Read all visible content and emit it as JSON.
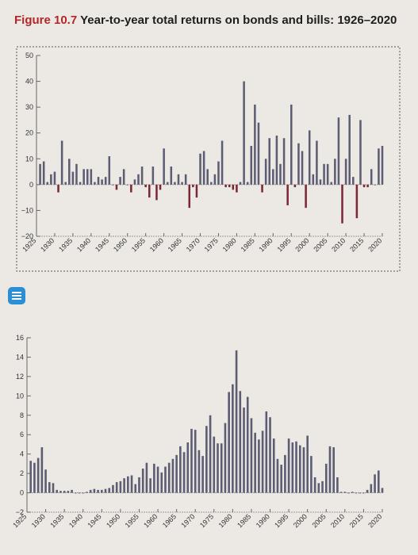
{
  "figure": {
    "number": "Figure 10.7",
    "title": "Year-to-year total returns on bonds and bills: 1926–2020"
  },
  "icons": {
    "document": "document-icon"
  },
  "chart_data": [
    {
      "type": "bar",
      "title": "",
      "xlabel": "",
      "ylabel": "",
      "grid": false,
      "ylim": [
        -20,
        50
      ],
      "yticks": [
        "50",
        "40",
        "30",
        "20",
        "10",
        "0",
        "-10",
        "-20"
      ],
      "xticks": [
        "1925",
        "1930",
        "1935",
        "1940",
        "1945",
        "1950",
        "1955",
        "1960",
        "1965",
        "1970",
        "1975",
        "1980",
        "1985",
        "1990",
        "1995",
        "2000",
        "2005",
        "2010",
        "2015",
        "2020"
      ],
      "colors": [
        "#5c5c72",
        "#7a2836"
      ],
      "x": [
        1926,
        1927,
        1928,
        1929,
        1930,
        1931,
        1932,
        1933,
        1934,
        1935,
        1936,
        1937,
        1938,
        1939,
        1940,
        1941,
        1942,
        1943,
        1944,
        1945,
        1946,
        1947,
        1948,
        1949,
        1950,
        1951,
        1952,
        1953,
        1954,
        1955,
        1956,
        1957,
        1958,
        1959,
        1960,
        1961,
        1962,
        1963,
        1964,
        1965,
        1966,
        1967,
        1968,
        1969,
        1970,
        1971,
        1972,
        1973,
        1974,
        1975,
        1976,
        1977,
        1978,
        1979,
        1980,
        1981,
        1982,
        1983,
        1984,
        1985,
        1986,
        1987,
        1988,
        1989,
        1990,
        1991,
        1992,
        1993,
        1994,
        1995,
        1996,
        1997,
        1998,
        1999,
        2000,
        2001,
        2002,
        2003,
        2004,
        2005,
        2006,
        2007,
        2008,
        2009,
        2010,
        2011,
        2012,
        2013,
        2014,
        2015,
        2016,
        2017,
        2018,
        2019,
        2020
      ],
      "values": [
        8,
        9,
        1,
        4,
        5,
        -3,
        17,
        1,
        10,
        5,
        8,
        1,
        6,
        6,
        6,
        1,
        3,
        2,
        3,
        11,
        0,
        -2,
        3,
        6,
        0,
        -3,
        2,
        4,
        7,
        -1,
        -5,
        7,
        -6,
        -2,
        14,
        1,
        7,
        1,
        4,
        1,
        4,
        -9,
        -1,
        -5,
        12,
        13,
        6,
        1,
        4,
        9,
        17,
        -1,
        -1,
        -2,
        -3,
        1,
        40,
        1,
        15,
        31,
        24,
        -3,
        10,
        18,
        6,
        19,
        8,
        18,
        -8,
        31,
        -1,
        16,
        13,
        -9,
        21,
        4,
        17,
        2,
        8,
        8,
        1,
        10,
        26,
        -15,
        10,
        27,
        3,
        -13,
        25,
        -1,
        -1,
        6,
        0,
        14,
        15
      ]
    },
    {
      "type": "bar",
      "title": "",
      "xlabel": "",
      "ylabel": "",
      "grid": false,
      "ylim": [
        -2,
        16
      ],
      "yticks": [
        "16",
        "14",
        "12",
        "10",
        "8",
        "6",
        "4",
        "2",
        "0",
        "-2"
      ],
      "xticks": [
        "1925",
        "1930",
        "1935",
        "1940",
        "1945",
        "1950",
        "1955",
        "1960",
        "1965",
        "1970",
        "1975",
        "1980",
        "1985",
        "1990",
        "1995",
        "2000",
        "2005",
        "2010",
        "2015",
        "2020"
      ],
      "colors": [
        "#5c5c72"
      ],
      "x": [
        1926,
        1927,
        1928,
        1929,
        1930,
        1931,
        1932,
        1933,
        1934,
        1935,
        1936,
        1937,
        1938,
        1939,
        1940,
        1941,
        1942,
        1943,
        1944,
        1945,
        1946,
        1947,
        1948,
        1949,
        1950,
        1951,
        1952,
        1953,
        1954,
        1955,
        1956,
        1957,
        1958,
        1959,
        1960,
        1961,
        1962,
        1963,
        1964,
        1965,
        1966,
        1967,
        1968,
        1969,
        1970,
        1971,
        1972,
        1973,
        1974,
        1975,
        1976,
        1977,
        1978,
        1979,
        1980,
        1981,
        1982,
        1983,
        1984,
        1985,
        1986,
        1987,
        1988,
        1989,
        1990,
        1991,
        1992,
        1993,
        1994,
        1995,
        1996,
        1997,
        1998,
        1999,
        2000,
        2001,
        2002,
        2003,
        2004,
        2005,
        2006,
        2007,
        2008,
        2009,
        2010,
        2011,
        2012,
        2013,
        2014,
        2015,
        2016,
        2017,
        2018,
        2019,
        2020
      ],
      "values": [
        3.3,
        3.1,
        3.6,
        4.7,
        2.4,
        1.1,
        1.0,
        0.3,
        0.2,
        0.2,
        0.2,
        0.3,
        0.0,
        0.0,
        0.0,
        0.1,
        0.3,
        0.4,
        0.3,
        0.3,
        0.4,
        0.5,
        0.8,
        1.1,
        1.2,
        1.5,
        1.7,
        1.8,
        0.9,
        1.6,
        2.5,
        3.1,
        1.5,
        3.0,
        2.7,
        2.1,
        2.7,
        3.1,
        3.5,
        3.9,
        4.8,
        4.2,
        5.2,
        6.6,
        6.5,
        4.4,
        3.8,
        6.9,
        8.0,
        5.8,
        5.1,
        5.1,
        7.2,
        10.4,
        11.2,
        14.7,
        10.5,
        8.8,
        9.9,
        7.7,
        6.2,
        5.5,
        6.4,
        8.4,
        7.8,
        5.6,
        3.5,
        2.9,
        3.9,
        5.6,
        5.2,
        5.3,
        4.9,
        4.7,
        5.9,
        3.8,
        1.6,
        1.0,
        1.2,
        3.0,
        4.8,
        4.7,
        1.6,
        0.1,
        0.1,
        0.0,
        0.1,
        0.0,
        0.0,
        0.0,
        0.3,
        0.9,
        1.9,
        2.3,
        0.5
      ]
    }
  ]
}
